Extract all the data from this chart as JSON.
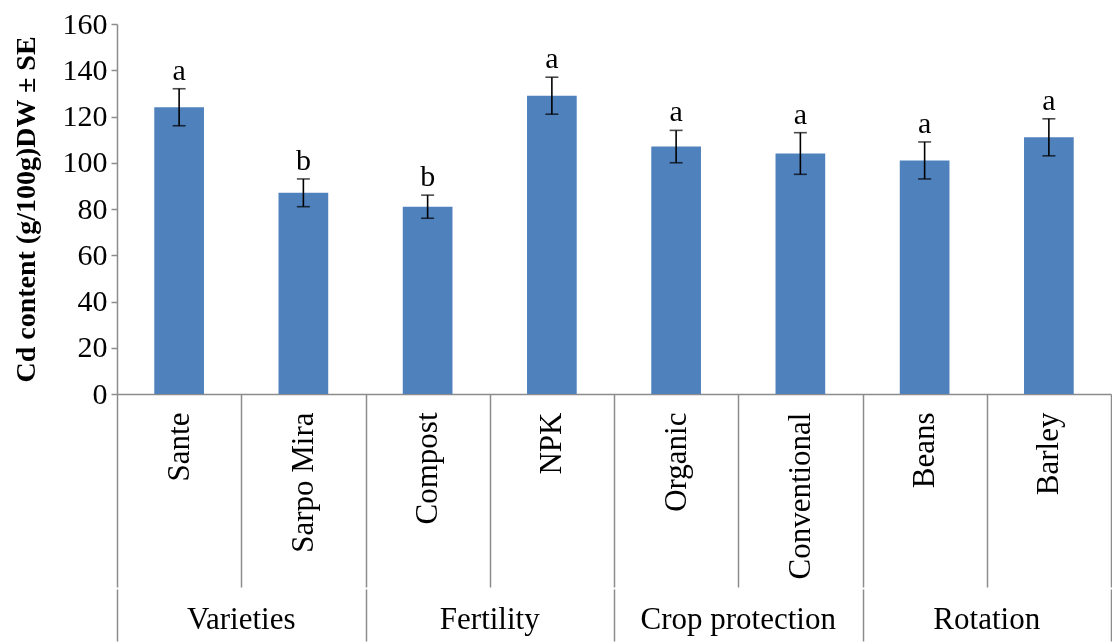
{
  "chart_data": {
    "type": "bar",
    "ylabel": "Cd content (g/100g)DW ± SE",
    "categories": [
      "Sante",
      "Sarpo Mira",
      "Compost",
      "NPK",
      "Organic",
      "Conventional",
      "Beans",
      "Barley"
    ],
    "values": [
      124,
      87,
      81,
      129,
      107,
      104,
      101,
      111
    ],
    "errors": [
      8,
      6,
      5,
      8,
      7,
      9,
      8,
      8
    ],
    "color": "#4f81bd",
    "ylim": [
      0,
      160
    ],
    "yticks": [
      0,
      20,
      40,
      60,
      80,
      100,
      120,
      140,
      160
    ],
    "annotations": [
      {
        "text": "a",
        "x": "Sante",
        "y": 124
      },
      {
        "text": "b",
        "x": "Sarpo Mira",
        "y": 87
      },
      {
        "text": "b",
        "x": "Compost",
        "y": 81
      },
      {
        "text": "a",
        "x": "NPK",
        "y": 129
      },
      {
        "text": "a",
        "x": "Organic",
        "y": 107
      },
      {
        "text": "a",
        "x": "Conventional",
        "y": 104
      },
      {
        "text": "a",
        "x": "Beans",
        "y": 101
      },
      {
        "text": "a",
        "x": "Barley",
        "y": 111
      },
      "Varieties",
      "Fertility",
      "Crop protection",
      "Rotation"
    ]
  }
}
